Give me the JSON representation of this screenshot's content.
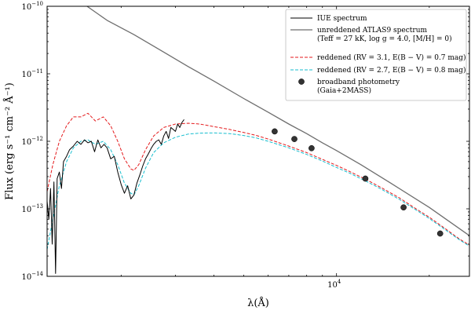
{
  "chart_data": {
    "type": "line",
    "title": "",
    "xlabel": "λ(Å)",
    "ylabel": "Flux (erg s⁻¹ cm⁻² Å⁻¹)",
    "xscale": "log",
    "yscale": "log",
    "xlim": [
      1150,
      27000
    ],
    "ylim": [
      1e-14,
      1e-10
    ],
    "x_ticks": [
      {
        "value": 10000,
        "base": "10",
        "exp": "4"
      }
    ],
    "y_ticks": [
      {
        "value": 1e-14,
        "base": "10",
        "exp": "−14"
      },
      {
        "value": 1e-13,
        "base": "10",
        "exp": "−13"
      },
      {
        "value": 1e-12,
        "base": "10",
        "exp": "−12"
      },
      {
        "value": 1e-11,
        "base": "10",
        "exp": "−11"
      },
      {
        "value": 1e-10,
        "base": "10",
        "exp": "−10"
      }
    ],
    "grid": false,
    "legend_position": "top-right",
    "legend": [
      {
        "key": "iue",
        "lines": [
          "IUE spectrum"
        ]
      },
      {
        "key": "atlas",
        "lines": [
          "unreddened ATLAS9 spectrum",
          "(Teff = 27 kK, log g = 4.0, [M/H] = 0)"
        ]
      },
      {
        "key": "red1",
        "lines": [
          "reddened (RV = 3.1, E(B − V) = 0.7 mag)"
        ]
      },
      {
        "key": "red2",
        "lines": [
          "reddened (RV = 2.7, E(B − V) = 0.8 mag)"
        ]
      },
      {
        "key": "phot",
        "lines": [
          "broadband photometry",
          "(Gaia+2MASS)"
        ]
      }
    ],
    "series": [
      {
        "key": "atlas",
        "style": "solid",
        "color": "#6e6e6e",
        "x": [
          1550,
          1800,
          2200,
          2700,
          3300,
          4000,
          5000,
          6000,
          7000,
          8000,
          9000,
          10000,
          12000,
          15000,
          20000,
          27000
        ],
        "y": [
          1e-10,
          6.2e-11,
          3.8e-11,
          2.2e-11,
          1.28e-11,
          7.8e-12,
          4.3e-12,
          2.7e-12,
          1.8e-12,
          1.3e-12,
          9.5e-13,
          7.3e-13,
          4.5e-13,
          2.4e-13,
          1.05e-13,
          4e-14
        ]
      },
      {
        "key": "red1",
        "style": "dashed",
        "color": "#e41a1c",
        "x": [
          1150,
          1200,
          1260,
          1330,
          1400,
          1480,
          1560,
          1650,
          1750,
          1850,
          1950,
          2050,
          2150,
          2200,
          2280,
          2400,
          2550,
          2750,
          3000,
          3300,
          3600,
          4000,
          4500,
          5000,
          5500,
          6000,
          7000,
          8000,
          9000,
          10000,
          11000,
          12500,
          14000,
          16000,
          18000,
          20000,
          22000,
          25000,
          27000
        ],
        "y": [
          1.8e-13,
          4.5e-13,
          1e-12,
          1.7e-12,
          2.3e-12,
          2.3e-12,
          2.6e-12,
          2e-12,
          2.3e-12,
          1.7e-12,
          1e-12,
          5.5e-13,
          3.9e-13,
          3.7e-13,
          4.5e-13,
          7.5e-13,
          1.2e-12,
          1.6e-12,
          1.8e-12,
          1.85e-12,
          1.8e-12,
          1.65e-12,
          1.5e-12,
          1.35e-12,
          1.22e-12,
          1.08e-12,
          8.5e-13,
          6.8e-13,
          5.4e-13,
          4.4e-13,
          3.6e-13,
          2.7e-13,
          2.05e-13,
          1.45e-13,
          1.02e-13,
          7.5e-14,
          5.5e-14,
          3.6e-14,
          2.9e-14
        ]
      },
      {
        "key": "red2",
        "style": "dashed",
        "color": "#17becf",
        "x": [
          1150,
          1200,
          1260,
          1330,
          1400,
          1480,
          1560,
          1650,
          1750,
          1850,
          1950,
          2050,
          2150,
          2200,
          2280,
          2400,
          2550,
          2750,
          3000,
          3300,
          3600,
          4000,
          4500,
          5000,
          5500,
          6000,
          7000,
          8000,
          9000,
          10000,
          11000,
          12500,
          14000,
          16000,
          18000,
          20000,
          22000,
          25000,
          27000
        ],
        "y": [
          2.5e-14,
          7e-14,
          2.2e-13,
          5e-13,
          8e-13,
          1e-12,
          1.05e-12,
          9e-13,
          1e-12,
          7.5e-13,
          4.5e-13,
          2.4e-13,
          1.7e-13,
          1.6e-13,
          2.2e-13,
          4e-13,
          6.8e-13,
          9.5e-13,
          1.15e-12,
          1.28e-12,
          1.32e-12,
          1.33e-12,
          1.3e-12,
          1.22e-12,
          1.12e-12,
          1e-12,
          8e-13,
          6.4e-13,
          5.1e-13,
          4.1e-13,
          3.4e-13,
          2.55e-13,
          1.95e-13,
          1.38e-13,
          9.8e-14,
          7.2e-14,
          5.3e-14,
          3.5e-14,
          2.8e-14
        ]
      },
      {
        "key": "iue",
        "style": "solid",
        "color": "#000000",
        "x": [
          1150,
          1165,
          1180,
          1195,
          1210,
          1225,
          1240,
          1260,
          1280,
          1300,
          1330,
          1360,
          1400,
          1440,
          1480,
          1520,
          1560,
          1600,
          1640,
          1680,
          1720,
          1760,
          1800,
          1850,
          1900,
          1950,
          2000,
          2050,
          2100,
          2150,
          2200,
          2250,
          2300,
          2350,
          2400,
          2450,
          2500,
          2550,
          2600,
          2650,
          2700,
          2750,
          2800,
          2850,
          2900,
          2950,
          3000,
          3050,
          3100,
          3150,
          3200
        ],
        "y": [
          1.3e-13,
          7e-14,
          2e-13,
          3e-14,
          2.5e-13,
          1.1e-14,
          2.8e-13,
          3.5e-13,
          2e-13,
          5e-13,
          6e-13,
          7.5e-13,
          8.5e-13,
          1e-12,
          9e-13,
          1.05e-12,
          9.5e-13,
          1e-12,
          7e-13,
          1.05e-12,
          8e-13,
          9e-13,
          8e-13,
          5.5e-13,
          6e-13,
          3.5e-13,
          2.3e-13,
          1.7e-13,
          2.2e-13,
          1.4e-13,
          1.6e-13,
          2.4e-13,
          3.2e-13,
          4.3e-13,
          5.5e-13,
          6.5e-13,
          7.8e-13,
          9e-13,
          1e-12,
          1.05e-12,
          9e-13,
          1.2e-12,
          1.4e-12,
          1.1e-12,
          1.6e-12,
          1.5e-12,
          1.4e-12,
          1.8e-12,
          1.6e-12,
          1.9e-12,
          2.1e-12
        ]
      }
    ],
    "points": {
      "key": "phot",
      "color": "#333333",
      "x": [
        6300,
        7300,
        8300,
        12400,
        16500,
        21700
      ],
      "y": [
        1.4e-12,
        1.08e-12,
        7.9e-13,
        2.8e-13,
        1.05e-13,
        4.3e-14
      ]
    }
  }
}
